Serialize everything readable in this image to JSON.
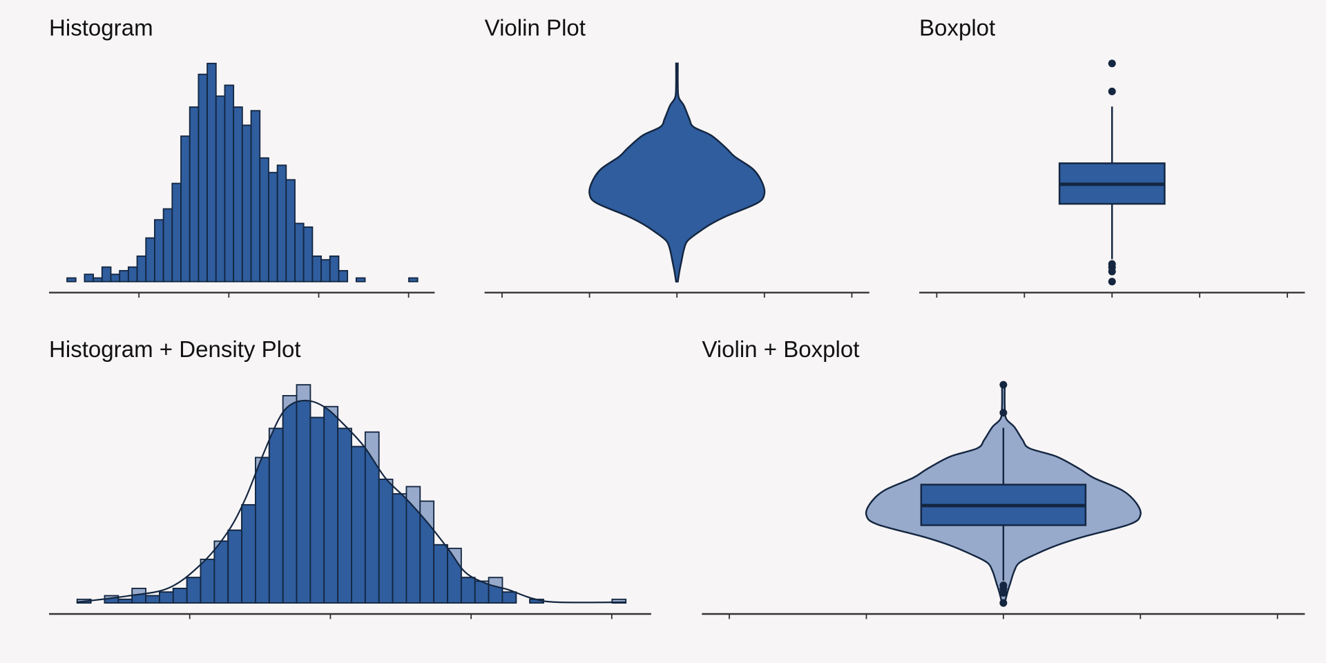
{
  "chart_data": [
    {
      "type": "histogram",
      "title": "Histogram",
      "bins": [
        -3.6,
        -3.405,
        -3.21,
        -3.015,
        -2.82,
        -2.625,
        -2.43,
        -2.235,
        -2.04,
        -1.845,
        -1.65,
        -1.455,
        -1.26,
        -1.065,
        -0.87,
        -0.675,
        -0.48,
        -0.285,
        -0.09,
        0.105,
        0.3,
        0.495,
        0.69,
        0.885,
        1.08,
        1.275,
        1.47,
        1.665,
        1.86,
        2.055,
        2.25,
        2.445,
        2.64,
        2.835,
        3.03,
        3.225,
        3.42,
        3.615,
        3.81,
        4.005,
        4.2
      ],
      "counts": [
        1,
        0,
        2,
        1,
        4,
        2,
        3,
        4,
        7,
        12,
        17,
        20,
        27,
        40,
        48,
        57,
        60,
        51,
        54,
        48,
        43,
        47,
        34,
        30,
        32,
        28,
        16,
        15,
        7,
        6,
        7,
        3,
        0,
        1,
        0,
        0,
        0,
        0,
        0,
        1
      ],
      "color": "#2f5d9e",
      "edgecolor": "#142640",
      "xlim": [
        -4,
        4.58
      ],
      "xticks": [
        -2,
        0,
        2,
        4
      ],
      "ylim": [
        0,
        60
      ]
    },
    {
      "type": "violin",
      "title": "Violin Plot",
      "violin": {
        "y": [
          4.2,
          3.44,
          2.99,
          2.69,
          2.23,
          1.93,
          1.63,
          1.18,
          0.87,
          0.42,
          -0.03,
          -0.46,
          -0.79,
          -1.24,
          -1.54,
          -1.85,
          -2.15,
          -2.45,
          -2.9,
          -3.21,
          -3.6
        ],
        "density": [
          0.01,
          0.01,
          0.02,
          0.08,
          0.14,
          0.19,
          0.39,
          0.56,
          0.66,
          0.87,
          0.97,
          1.0,
          0.92,
          0.58,
          0.39,
          0.24,
          0.12,
          0.08,
          0.05,
          0.03,
          0.01
        ]
      },
      "color": "#2f5d9e",
      "edgecolor": "#142640",
      "xlim": [
        -2.2,
        2.2
      ],
      "xticks": [
        -2,
        -1,
        0,
        1,
        2
      ],
      "ylim": [
        -3.6,
        4.2
      ]
    },
    {
      "type": "box",
      "title": "Boxplot",
      "box": {
        "whislo": -2.8,
        "q1": -0.82,
        "med": -0.12,
        "q3": 0.63,
        "whishi": 2.66,
        "fliers": [
          4.2,
          3.2,
          -2.97,
          -3.09,
          -3.24,
          -3.6
        ]
      },
      "color": "#2f5d9e",
      "edgecolor": "#142640",
      "xlim": [
        -2.2,
        2.2
      ],
      "xticks": [
        -2,
        -1,
        0,
        1,
        2
      ],
      "ylim": [
        -3.6,
        4.2
      ]
    },
    {
      "type": "histogram",
      "title": "Histogram + Density Plot",
      "bins": [
        -3.6,
        -3.405,
        -3.21,
        -3.015,
        -2.82,
        -2.625,
        -2.43,
        -2.235,
        -2.04,
        -1.845,
        -1.65,
        -1.455,
        -1.26,
        -1.065,
        -0.87,
        -0.675,
        -0.48,
        -0.285,
        -0.09,
        0.105,
        0.3,
        0.495,
        0.69,
        0.885,
        1.08,
        1.275,
        1.47,
        1.665,
        1.86,
        2.055,
        2.25,
        2.445,
        2.64,
        2.835,
        3.03,
        3.225,
        3.42,
        3.615,
        3.81,
        4.005,
        4.2
      ],
      "counts": [
        1,
        0,
        2,
        1,
        4,
        2,
        3,
        4,
        7,
        12,
        17,
        20,
        27,
        40,
        48,
        57,
        60,
        51,
        54,
        48,
        43,
        47,
        34,
        30,
        32,
        28,
        16,
        15,
        7,
        6,
        7,
        3,
        0,
        1,
        0,
        0,
        0,
        0,
        0,
        1
      ],
      "density": {
        "x": [
          -3.61,
          -2.89,
          -2.29,
          -1.81,
          -1.45,
          -1.21,
          -0.97,
          -0.73,
          -0.55,
          -0.31,
          -0.07,
          0.17,
          0.48,
          0.78,
          1.08,
          1.38,
          1.68,
          1.92,
          2.22,
          2.52,
          2.88,
          3.24,
          4.2
        ],
        "y": [
          0.2,
          1.9,
          4.2,
          11.2,
          19.8,
          28.6,
          40.2,
          50.7,
          54.7,
          55.6,
          53.7,
          49.5,
          43,
          34.4,
          28.6,
          22.1,
          14.7,
          8.4,
          5.3,
          3.7,
          1.2,
          0.2,
          0.2
        ]
      },
      "color": "#2f5d9e",
      "light_color": "#97aacb",
      "edgecolor": "#142640",
      "xlim": [
        -4,
        4.56
      ],
      "xticks": [
        -2,
        0,
        2,
        4
      ],
      "ylim": [
        0,
        60
      ]
    },
    {
      "type": "violin",
      "title": "Violin + Boxplot",
      "violin": {
        "y": [
          4.2,
          3.44,
          2.99,
          2.69,
          2.23,
          1.93,
          1.63,
          1.18,
          0.87,
          0.42,
          -0.03,
          -0.46,
          -0.79,
          -1.24,
          -1.54,
          -1.85,
          -2.15,
          -2.45,
          -2.9,
          -3.21,
          -3.6
        ],
        "density": [
          0.01,
          0.01,
          0.02,
          0.08,
          0.14,
          0.19,
          0.39,
          0.56,
          0.66,
          0.87,
          0.97,
          1.0,
          0.92,
          0.58,
          0.39,
          0.24,
          0.12,
          0.08,
          0.05,
          0.03,
          0.01
        ]
      },
      "box": {
        "whislo": -2.8,
        "q1": -0.82,
        "med": -0.12,
        "q3": 0.63,
        "whishi": 2.66,
        "fliers": [
          4.2,
          3.2,
          -2.97,
          -3.09,
          -3.24,
          -3.6
        ]
      },
      "color": "#97aacb",
      "box_color": "#2f5d9e",
      "edgecolor": "#142640",
      "xlim": [
        -2.2,
        2.2
      ],
      "xticks": [
        -2,
        -1,
        0,
        1,
        2
      ],
      "ylim": [
        -3.6,
        4.2
      ]
    }
  ]
}
